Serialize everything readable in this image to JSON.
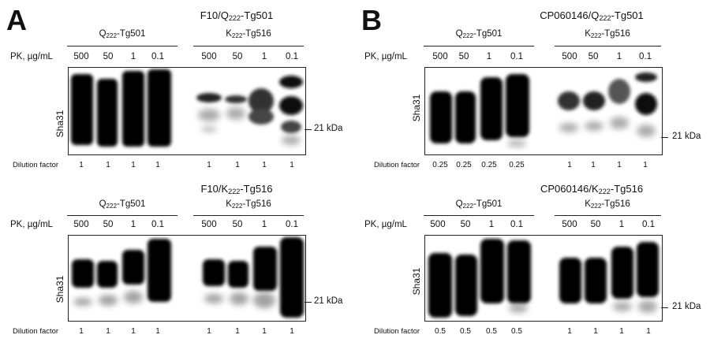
{
  "panels": [
    {
      "letter": "A",
      "blots": [
        {
          "title_pre": "F10/Q",
          "title_sub": "222",
          "title_post": "-Tg501",
          "groups": [
            {
              "pre": "Q",
              "sub": "222",
              "post": "-Tg501"
            },
            {
              "pre": "K",
              "sub": "222",
              "post": "-Tg516"
            }
          ],
          "pk_label": "PK, µg/mL",
          "lanes": [
            "500",
            "50",
            "1",
            "0.1",
            "500",
            "50",
            "1",
            "0.1"
          ],
          "ylabel": "Sha31",
          "marker": "21 kDa",
          "dilution_label": "Dilution factor",
          "dilutions": [
            "1",
            "1",
            "1",
            "1",
            "1",
            "1",
            "1",
            "1"
          ]
        },
        {
          "title_pre": "F10/K",
          "title_sub": "222",
          "title_post": "-Tg516",
          "groups": [
            {
              "pre": "Q",
              "sub": "222",
              "post": "-Tg501"
            },
            {
              "pre": "K",
              "sub": "222",
              "post": "-Tg516"
            }
          ],
          "pk_label": "PK, µg/mL",
          "lanes": [
            "500",
            "50",
            "1",
            "0.1",
            "500",
            "50",
            "1",
            "0.1"
          ],
          "ylabel": "Sha31",
          "marker": "21 kDa",
          "dilution_label": "Dilution factor",
          "dilutions": [
            "1",
            "1",
            "1",
            "1",
            "1",
            "1",
            "1",
            "1"
          ]
        }
      ]
    },
    {
      "letter": "B",
      "blots": [
        {
          "title_pre": "CP060146/Q",
          "title_sub": "222",
          "title_post": "-Tg501",
          "groups": [
            {
              "pre": "Q",
              "sub": "222",
              "post": "-Tg501"
            },
            {
              "pre": "K",
              "sub": "222",
              "post": "-Tg516"
            }
          ],
          "pk_label": "PK, µg/mL",
          "lanes": [
            "500",
            "50",
            "1",
            "0.1",
            "500",
            "50",
            "1",
            "0.1"
          ],
          "ylabel": "Sha31",
          "marker": "21 kDa",
          "dilution_label": "Dilution factor",
          "dilutions": [
            "0.25",
            "0.25",
            "0.25",
            "0.25",
            "1",
            "1",
            "1",
            "1"
          ]
        },
        {
          "title_pre": "CP060146/K",
          "title_sub": "222",
          "title_post": "-Tg516",
          "groups": [
            {
              "pre": "Q",
              "sub": "222",
              "post": "-Tg501"
            },
            {
              "pre": "K",
              "sub": "222",
              "post": "-Tg516"
            }
          ],
          "pk_label": "PK, µg/mL",
          "lanes": [
            "500",
            "50",
            "1",
            "0.1",
            "500",
            "50",
            "1",
            "0.1"
          ],
          "ylabel": "Sha31",
          "marker": "21 kDa",
          "dilution_label": "Dilution factor",
          "dilutions": [
            "0.5",
            "0.5",
            "0.5",
            "0.5",
            "1",
            "1",
            "1",
            "1"
          ]
        }
      ]
    }
  ]
}
